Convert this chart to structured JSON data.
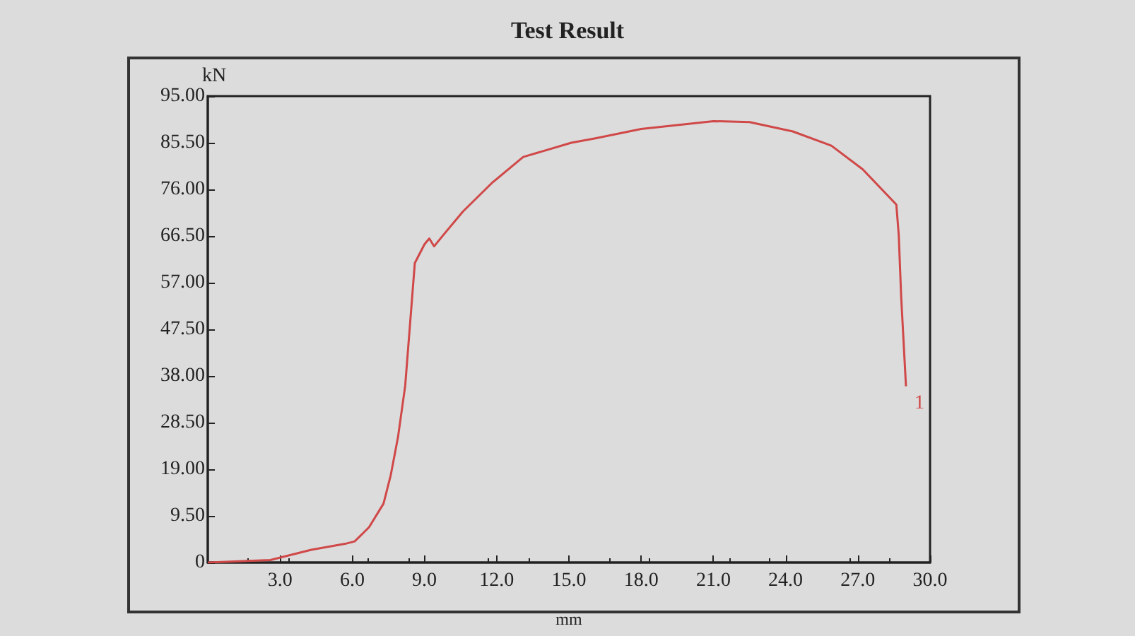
{
  "chart_data": {
    "type": "line",
    "title": "Test Result",
    "xlabel": "mm",
    "ylabel": "kN",
    "xlim": [
      0,
      30
    ],
    "xticks": [
      {
        "value": 3,
        "label": "3.0"
      },
      {
        "value": 6,
        "label": "6.0"
      },
      {
        "value": 9,
        "label": "9.0"
      },
      {
        "value": 12,
        "label": "12.0"
      },
      {
        "value": 15,
        "label": "15.0"
      },
      {
        "value": 18,
        "label": "18.0"
      },
      {
        "value": 21,
        "label": "21.0"
      },
      {
        "value": 24,
        "label": "24.0"
      },
      {
        "value": 27,
        "label": "27.0"
      },
      {
        "value": 30,
        "label": "30.0"
      }
    ],
    "ylim": [
      0,
      95
    ],
    "yticks": [
      0,
      {
        "value": 9.5,
        "label": "9.50"
      },
      {
        "value": 19,
        "label": "19.00"
      },
      {
        "value": 28.5,
        "label": "28.50"
      },
      {
        "value": 38,
        "label": "38.00"
      },
      {
        "value": 47.5,
        "label": "47.50"
      },
      {
        "value": 57,
        "label": "57.00"
      },
      {
        "value": 66.5,
        "label": "66.50"
      },
      {
        "value": 76,
        "label": "76.00"
      },
      {
        "value": 85.5,
        "label": "85.50"
      },
      {
        "value": 95,
        "label": "95.00"
      }
    ],
    "grid": false,
    "legend": false,
    "marker": "none",
    "line_style": "solid",
    "series": [
      {
        "name": "1",
        "color": "#d04848",
        "x": [
          0,
          2.6,
          4.3,
          5.7,
          6.1,
          6.7,
          7.3,
          7.6,
          7.9,
          8.2,
          8.4,
          8.6,
          9.0,
          9.2,
          9.4,
          9.8,
          10.6,
          11.8,
          13.1,
          15.1,
          16.1,
          18.0,
          21.0,
          22.5,
          24.3,
          25.9,
          27.2,
          28.6,
          28.7,
          28.8,
          29.0
        ],
        "values": [
          0,
          0.5,
          2.6,
          3.8,
          4.3,
          7.2,
          12,
          17.8,
          25.5,
          36,
          48.5,
          61,
          64.8,
          66,
          64.4,
          66.8,
          71.5,
          77.3,
          82.6,
          85.5,
          86.4,
          88.3,
          89.9,
          89.7,
          87.8,
          84.9,
          80.1,
          72.9,
          66.7,
          54.2,
          35.9
        ]
      }
    ]
  }
}
